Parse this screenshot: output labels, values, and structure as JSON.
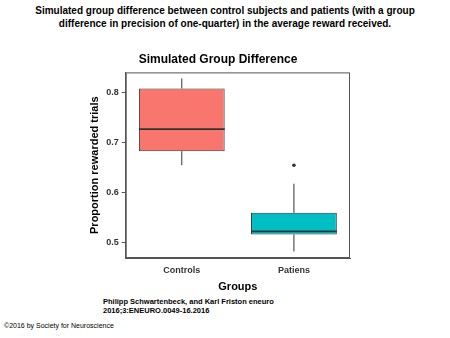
{
  "caption": "Simulated group difference between control subjects and patients (with a group difference in precision of one-quarter) in the average reward received.",
  "chart_data": {
    "type": "box",
    "title": "Simulated Group Difference",
    "x_label": "Groups",
    "y_label": "Proportion rewarded trials",
    "categories": [
      "Controls",
      "Patiens"
    ],
    "boxes": [
      {
        "whisker_low": 0.655,
        "q1": 0.683,
        "median": 0.727,
        "q3": 0.808,
        "whisker_high": 0.828,
        "outliers": []
      },
      {
        "whisker_low": 0.483,
        "q1": 0.517,
        "median": 0.523,
        "q3": 0.56,
        "whisker_high": 0.618,
        "outliers": [
          0.655
        ]
      }
    ],
    "colors": [
      "#f8766d",
      "#00bfc4"
    ],
    "ylim": [
      0.47,
      0.84
    ],
    "yticks": [
      0.5,
      0.6,
      0.7,
      0.8
    ],
    "grid": false
  },
  "citation": [
    "Philipp Schwartenbeck, and Karl Friston eneuro",
    "2016;3:ENEURO.0049-16.2016"
  ],
  "copyright": "©2016 by Society for Neuroscience"
}
